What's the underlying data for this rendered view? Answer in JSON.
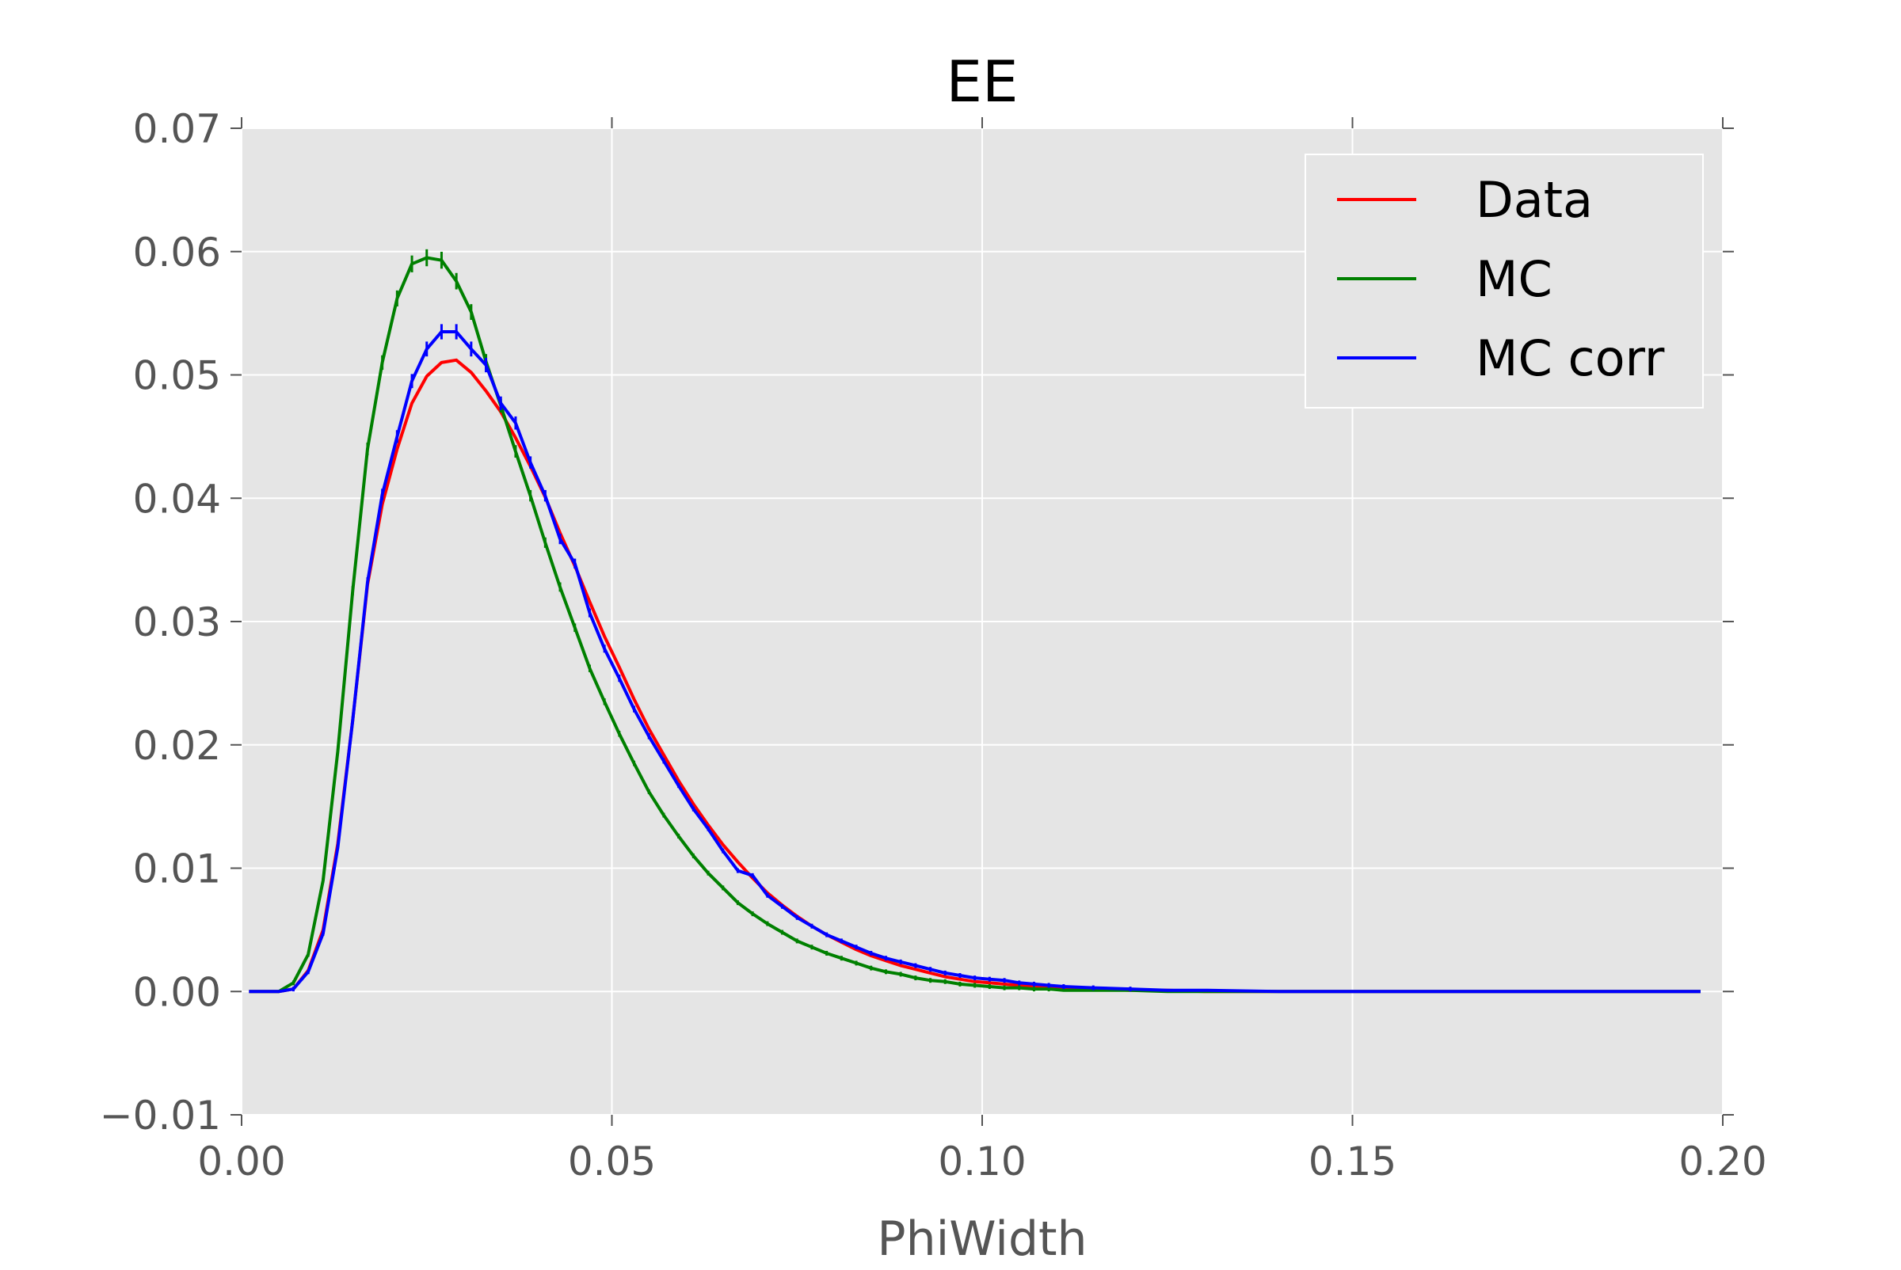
{
  "chart_data": {
    "type": "line",
    "title": "EE",
    "xlabel": "PhiWidth",
    "ylabel": "",
    "xlim": [
      0.0,
      0.2
    ],
    "ylim": [
      -0.01,
      0.07
    ],
    "xticks": [
      0.0,
      0.05,
      0.1,
      0.15,
      0.2
    ],
    "xtick_labels": [
      "0.00",
      "0.05",
      "0.10",
      "0.15",
      "0.20"
    ],
    "yticks": [
      -0.01,
      0.0,
      0.01,
      0.02,
      0.03,
      0.04,
      0.05,
      0.06,
      0.07
    ],
    "ytick_labels": [
      "−0.01",
      "0.00",
      "0.01",
      "0.02",
      "0.03",
      "0.04",
      "0.05",
      "0.06",
      "0.07"
    ],
    "grid": true,
    "legend_position": "top-right",
    "background": "#e5e5e5",
    "series": [
      {
        "name": "Data",
        "color": "#ff0000",
        "x": [
          0.001,
          0.005,
          0.007,
          0.009,
          0.011,
          0.013,
          0.015,
          0.017,
          0.019,
          0.021,
          0.023,
          0.025,
          0.027,
          0.029,
          0.031,
          0.033,
          0.035,
          0.037,
          0.039,
          0.041,
          0.043,
          0.045,
          0.047,
          0.049,
          0.051,
          0.053,
          0.055,
          0.057,
          0.059,
          0.061,
          0.063,
          0.065,
          0.067,
          0.069,
          0.071,
          0.073,
          0.075,
          0.077,
          0.079,
          0.081,
          0.083,
          0.085,
          0.087,
          0.089,
          0.091,
          0.093,
          0.095,
          0.097,
          0.099,
          0.101,
          0.103,
          0.105,
          0.107,
          0.109,
          0.111,
          0.115,
          0.12,
          0.125,
          0.13,
          0.14,
          0.15,
          0.16,
          0.17,
          0.18,
          0.19,
          0.197
        ],
        "y": [
          0.0,
          0.0,
          0.0002,
          0.0017,
          0.005,
          0.012,
          0.022,
          0.033,
          0.0395,
          0.044,
          0.0477,
          0.0499,
          0.051,
          0.0512,
          0.0502,
          0.0487,
          0.047,
          0.0449,
          0.0426,
          0.0401,
          0.0372,
          0.0345,
          0.0316,
          0.0288,
          0.0263,
          0.0237,
          0.0213,
          0.0192,
          0.0171,
          0.0152,
          0.0135,
          0.0119,
          0.0105,
          0.0092,
          0.008,
          0.007,
          0.0061,
          0.0053,
          0.0046,
          0.004,
          0.0034,
          0.0029,
          0.0025,
          0.0021,
          0.0018,
          0.0015,
          0.0012,
          0.001,
          0.0008,
          0.0007,
          0.0006,
          0.0005,
          0.0004,
          0.0003,
          0.0003,
          0.0002,
          0.0001,
          0.0001,
          0.0,
          0.0,
          0.0,
          0.0,
          0.0,
          0.0,
          0.0,
          0.0
        ]
      },
      {
        "name": "MC",
        "color": "#008000",
        "x": [
          0.001,
          0.005,
          0.007,
          0.009,
          0.011,
          0.013,
          0.015,
          0.017,
          0.019,
          0.021,
          0.023,
          0.025,
          0.027,
          0.029,
          0.031,
          0.033,
          0.035,
          0.037,
          0.039,
          0.041,
          0.043,
          0.045,
          0.047,
          0.049,
          0.051,
          0.053,
          0.055,
          0.057,
          0.059,
          0.061,
          0.063,
          0.065,
          0.067,
          0.069,
          0.071,
          0.073,
          0.075,
          0.077,
          0.079,
          0.081,
          0.083,
          0.085,
          0.087,
          0.089,
          0.091,
          0.093,
          0.095,
          0.097,
          0.099,
          0.101,
          0.103,
          0.105,
          0.107,
          0.109,
          0.111,
          0.115,
          0.12,
          0.125,
          0.13,
          0.14,
          0.15,
          0.16,
          0.17,
          0.18,
          0.19,
          0.197
        ],
        "y": [
          0.0,
          0.0,
          0.0007,
          0.003,
          0.009,
          0.0195,
          0.0325,
          0.044,
          0.051,
          0.0562,
          0.059,
          0.0595,
          0.0593,
          0.0576,
          0.0551,
          0.0511,
          0.0475,
          0.0438,
          0.0402,
          0.0364,
          0.0328,
          0.0295,
          0.0262,
          0.0235,
          0.0209,
          0.0185,
          0.0162,
          0.0143,
          0.0126,
          0.011,
          0.0096,
          0.0084,
          0.0072,
          0.0063,
          0.0055,
          0.0048,
          0.0041,
          0.0036,
          0.0031,
          0.0027,
          0.0023,
          0.0019,
          0.0016,
          0.0014,
          0.0011,
          0.0009,
          0.0008,
          0.0006,
          0.0005,
          0.0004,
          0.0003,
          0.0003,
          0.0002,
          0.0002,
          0.0001,
          0.0001,
          0.0001,
          0.0,
          0.0,
          0.0,
          0.0,
          0.0,
          0.0,
          0.0,
          0.0,
          0.0
        ]
      },
      {
        "name": "MC corr",
        "color": "#0000ff",
        "x": [
          0.001,
          0.005,
          0.007,
          0.009,
          0.011,
          0.013,
          0.015,
          0.017,
          0.019,
          0.021,
          0.023,
          0.025,
          0.027,
          0.029,
          0.031,
          0.033,
          0.035,
          0.037,
          0.039,
          0.041,
          0.043,
          0.045,
          0.047,
          0.049,
          0.051,
          0.053,
          0.055,
          0.057,
          0.059,
          0.061,
          0.063,
          0.065,
          0.067,
          0.069,
          0.071,
          0.073,
          0.075,
          0.077,
          0.079,
          0.081,
          0.083,
          0.085,
          0.087,
          0.089,
          0.091,
          0.093,
          0.095,
          0.097,
          0.099,
          0.101,
          0.103,
          0.105,
          0.107,
          0.109,
          0.111,
          0.115,
          0.12,
          0.125,
          0.13,
          0.14,
          0.15,
          0.16,
          0.17,
          0.18,
          0.19,
          0.197
        ],
        "y": [
          0.0,
          0.0,
          0.0002,
          0.0016,
          0.0047,
          0.0117,
          0.022,
          0.0332,
          0.0403,
          0.045,
          0.0495,
          0.0521,
          0.0535,
          0.0535,
          0.0521,
          0.0508,
          0.0477,
          0.0461,
          0.0429,
          0.0402,
          0.0367,
          0.0347,
          0.0307,
          0.0278,
          0.0254,
          0.0229,
          0.0207,
          0.0187,
          0.0167,
          0.0148,
          0.0132,
          0.0114,
          0.0098,
          0.0094,
          0.0078,
          0.0069,
          0.006,
          0.0053,
          0.0046,
          0.0041,
          0.0036,
          0.0031,
          0.0027,
          0.0024,
          0.0021,
          0.0018,
          0.0015,
          0.0013,
          0.0011,
          0.001,
          0.0009,
          0.0007,
          0.0006,
          0.0005,
          0.0004,
          0.0003,
          0.0002,
          0.0001,
          0.0001,
          0.0,
          0.0,
          0.0,
          0.0,
          0.0,
          0.0,
          0.0
        ]
      }
    ]
  }
}
